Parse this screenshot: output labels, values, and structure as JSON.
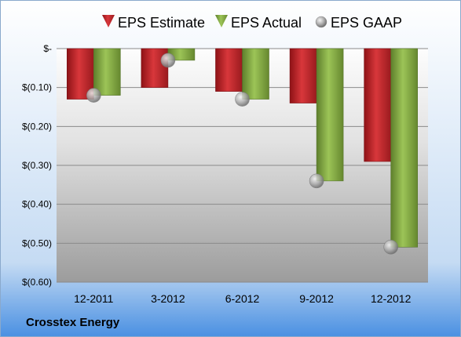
{
  "company_name": "Crosstex Energy",
  "colors": {
    "estimate": "#c0282c",
    "actual": "#8db34a",
    "gaap": "#a8a8a8"
  },
  "chart_data": {
    "type": "bar",
    "categories": [
      "12-2011",
      "3-2012",
      "6-2012",
      "9-2012",
      "12-2012"
    ],
    "series": [
      {
        "name": "EPS Estimate",
        "type": "bar",
        "values": [
          -0.13,
          -0.1,
          -0.11,
          -0.14,
          -0.29
        ]
      },
      {
        "name": "EPS Actual",
        "type": "bar",
        "values": [
          -0.12,
          -0.03,
          -0.13,
          -0.34,
          -0.51
        ]
      },
      {
        "name": "EPS GAAP",
        "type": "scatter",
        "values": [
          -0.12,
          -0.03,
          -0.13,
          -0.34,
          -0.51
        ]
      }
    ],
    "ylim": [
      -0.6,
      0
    ],
    "yticks": [
      0,
      -0.1,
      -0.2,
      -0.3,
      -0.4,
      -0.5,
      -0.6
    ],
    "ytick_labels": [
      "$-",
      "$(0.10)",
      "$(0.20)",
      "$(0.30)",
      "$(0.40)",
      "$(0.50)",
      "$(0.60)"
    ],
    "legend_position": "top",
    "grid": true
  }
}
